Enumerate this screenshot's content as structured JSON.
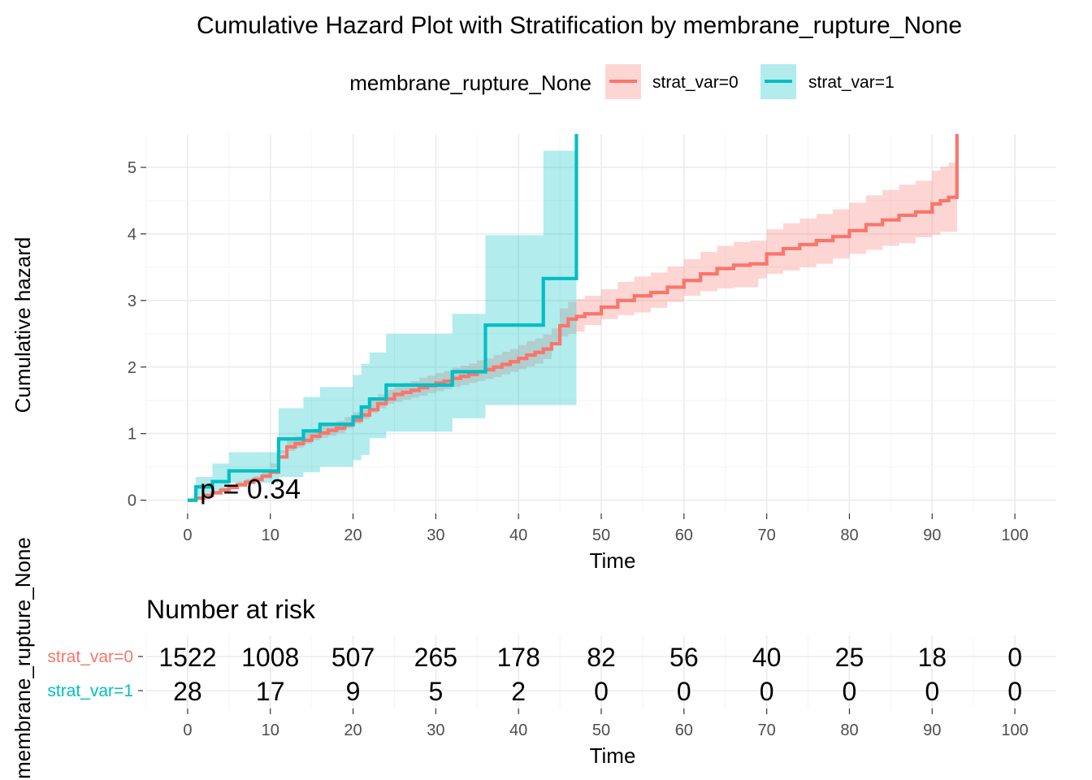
{
  "chart_data": {
    "type": "line",
    "title": "Cumulative Hazard Plot with Stratification by membrane_rupture_None",
    "xlabel": "Time",
    "ylabel": "Cumulative hazard",
    "xlim": [
      -5,
      105
    ],
    "ylim": [
      -0.2,
      5.5
    ],
    "x_ticks": [
      0,
      10,
      20,
      30,
      40,
      50,
      60,
      70,
      80,
      90,
      100
    ],
    "y_ticks": [
      0,
      1,
      2,
      3,
      4,
      5
    ],
    "grid": true,
    "legend": {
      "title": "membrane_rupture_None",
      "position": "top",
      "entries": [
        "strat_var=0",
        "strat_var=1"
      ]
    },
    "annotation": "p = 0.34",
    "annotation_at": [
      1.5,
      0.17
    ],
    "series": [
      {
        "name": "strat_var=0",
        "color": "#F8766D",
        "fill": "#F8766D",
        "x": [
          0,
          1,
          2,
          3,
          4,
          5,
          6,
          7,
          8,
          9,
          10,
          11,
          12,
          13,
          14,
          15,
          16,
          17,
          18,
          19,
          20,
          21,
          22,
          23,
          24,
          25,
          26,
          27,
          28,
          29,
          30,
          31,
          32,
          33,
          34,
          35,
          36,
          37,
          38,
          39,
          40,
          41,
          42,
          43,
          44,
          45,
          46,
          47,
          48,
          50,
          52,
          54,
          56,
          58,
          60,
          62,
          64,
          66,
          68,
          69,
          70,
          72,
          74,
          76,
          78,
          80,
          82,
          84,
          86,
          88,
          90,
          91,
          92,
          93,
          93
        ],
        "y": [
          0.0,
          0.03,
          0.07,
          0.11,
          0.15,
          0.19,
          0.23,
          0.27,
          0.31,
          0.36,
          0.42,
          0.65,
          0.8,
          0.85,
          0.9,
          0.96,
          1.01,
          1.05,
          1.08,
          1.13,
          1.2,
          1.28,
          1.36,
          1.45,
          1.52,
          1.59,
          1.62,
          1.65,
          1.69,
          1.72,
          1.76,
          1.79,
          1.83,
          1.86,
          1.89,
          1.93,
          1.96,
          2.0,
          2.04,
          2.08,
          2.13,
          2.18,
          2.22,
          2.27,
          2.35,
          2.62,
          2.72,
          2.76,
          2.8,
          2.9,
          3.0,
          3.07,
          3.12,
          3.2,
          3.3,
          3.4,
          3.48,
          3.53,
          3.55,
          3.55,
          3.7,
          3.78,
          3.84,
          3.9,
          3.96,
          4.05,
          4.14,
          4.21,
          4.28,
          4.33,
          4.45,
          4.5,
          4.55,
          4.55,
          5.5
        ],
        "lower": [
          0.0,
          0.01,
          0.04,
          0.08,
          0.11,
          0.15,
          0.18,
          0.22,
          0.26,
          0.3,
          0.35,
          0.55,
          0.7,
          0.74,
          0.79,
          0.85,
          0.9,
          0.94,
          0.97,
          1.01,
          1.08,
          1.15,
          1.22,
          1.31,
          1.38,
          1.45,
          1.48,
          1.51,
          1.54,
          1.57,
          1.61,
          1.64,
          1.67,
          1.7,
          1.73,
          1.76,
          1.79,
          1.82,
          1.85,
          1.89,
          1.93,
          1.97,
          2.01,
          2.05,
          2.12,
          2.36,
          2.46,
          2.5,
          2.53,
          2.63,
          2.72,
          2.78,
          2.82,
          2.89,
          2.98,
          3.07,
          3.14,
          3.18,
          3.2,
          3.2,
          3.33,
          3.4,
          3.45,
          3.5,
          3.55,
          3.63,
          3.7,
          3.76,
          3.82,
          3.86,
          3.95,
          3.99,
          4.03,
          4.03,
          4.03
        ],
        "upper": [
          0.0,
          0.05,
          0.1,
          0.14,
          0.19,
          0.23,
          0.28,
          0.32,
          0.36,
          0.42,
          0.49,
          0.75,
          0.9,
          0.96,
          1.01,
          1.07,
          1.12,
          1.16,
          1.19,
          1.25,
          1.32,
          1.41,
          1.5,
          1.59,
          1.66,
          1.73,
          1.76,
          1.79,
          1.84,
          1.87,
          1.91,
          1.94,
          1.99,
          2.02,
          2.05,
          2.1,
          2.13,
          2.18,
          2.23,
          2.27,
          2.33,
          2.39,
          2.43,
          2.49,
          2.58,
          2.88,
          2.98,
          3.02,
          3.07,
          3.17,
          3.28,
          3.36,
          3.42,
          3.51,
          3.62,
          3.73,
          3.82,
          3.88,
          3.9,
          3.9,
          4.07,
          4.16,
          4.23,
          4.3,
          4.37,
          4.47,
          4.58,
          4.66,
          4.74,
          4.8,
          4.95,
          5.01,
          5.07,
          5.07,
          5.07
        ]
      },
      {
        "name": "strat_var=1",
        "color": "#00BFC4",
        "fill": "#00BFC4",
        "x": [
          0,
          1,
          3,
          5,
          11,
          14,
          16,
          20,
          21,
          22,
          24,
          32,
          36,
          43,
          47,
          47
        ],
        "y": [
          0.0,
          0.2,
          0.28,
          0.44,
          0.92,
          1.04,
          1.14,
          1.25,
          1.4,
          1.52,
          1.73,
          1.93,
          2.63,
          3.33,
          3.33,
          5.5
        ],
        "lower": [
          0.0,
          0.0,
          0.05,
          0.12,
          0.26,
          0.35,
          0.42,
          0.5,
          0.6,
          0.68,
          0.93,
          1.03,
          1.23,
          1.43,
          1.43,
          1.43
        ],
        "upper": [
          0.0,
          0.35,
          0.55,
          0.72,
          1.38,
          1.55,
          1.7,
          1.88,
          2.05,
          2.22,
          2.5,
          2.8,
          3.98,
          5.25,
          5.25,
          5.25
        ]
      }
    ]
  },
  "risk_table": {
    "title": "Number at risk",
    "ylabel": "membrane_rupture_None",
    "xlabel": "Time",
    "times": [
      0,
      10,
      20,
      30,
      40,
      50,
      60,
      70,
      80,
      90,
      100
    ],
    "rows": [
      {
        "group": "strat_var=0",
        "color": "#F8766D",
        "values": [
          "1522",
          "1008",
          "507",
          "265",
          "178",
          "82",
          "56",
          "40",
          "25",
          "18",
          "0"
        ]
      },
      {
        "group": "strat_var=1",
        "color": "#00BFC4",
        "values": [
          "28",
          "17",
          "9",
          "5",
          "2",
          "0",
          "0",
          "0",
          "0",
          "0",
          "0"
        ]
      }
    ]
  }
}
